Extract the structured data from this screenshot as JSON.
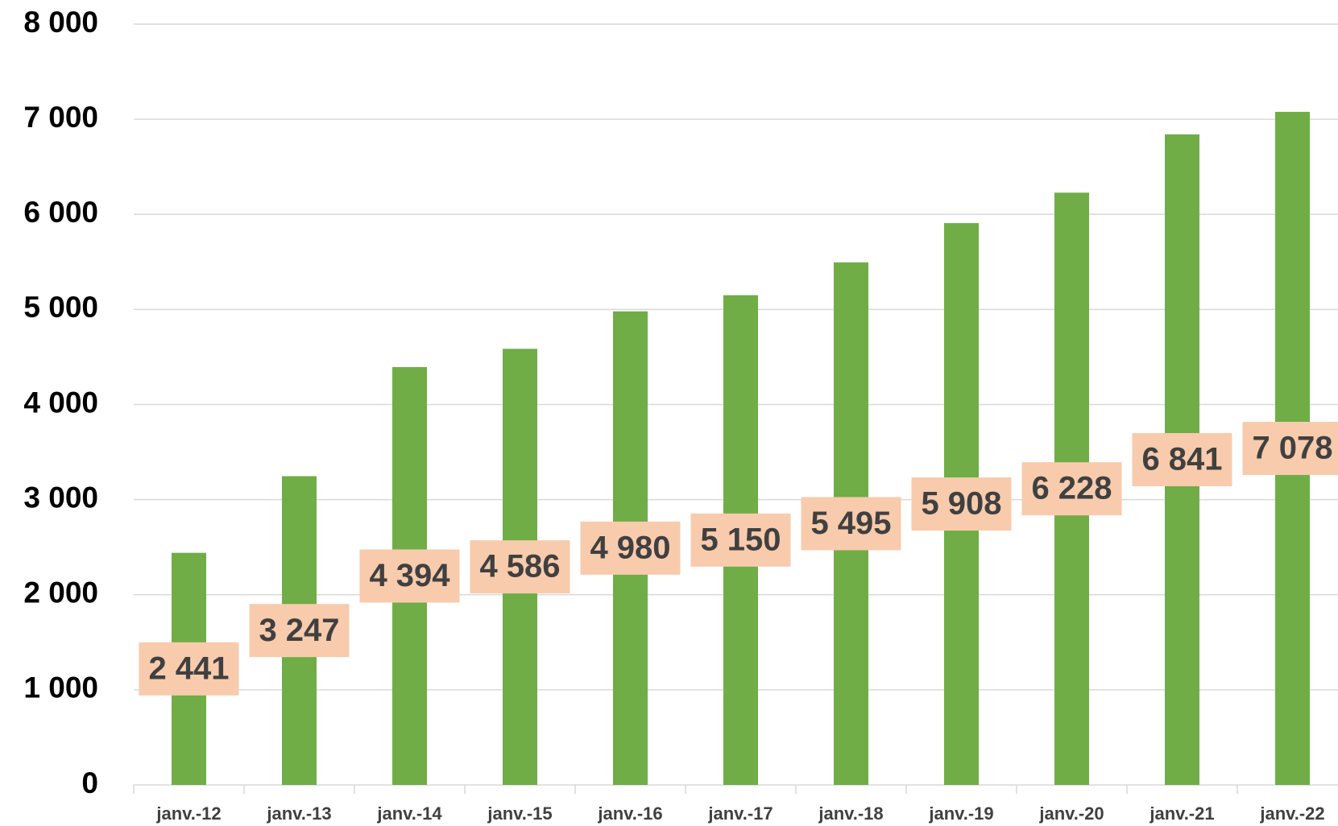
{
  "chart_data": {
    "type": "bar",
    "categories": [
      "janv.-12",
      "janv.-13",
      "janv.-14",
      "janv.-15",
      "janv.-16",
      "janv.-17",
      "janv.-18",
      "janv.-19",
      "janv.-20",
      "janv.-21",
      "janv.-22"
    ],
    "values": [
      2441,
      3247,
      4394,
      4586,
      4980,
      5150,
      5495,
      5908,
      6228,
      6841,
      7078
    ],
    "value_labels": [
      "2 441",
      "3 247",
      "4 394",
      "4 586",
      "4 980",
      "5 150",
      "5 495",
      "5 908",
      "6 228",
      "6 841",
      "7 078"
    ],
    "color": "#70ad47",
    "label_color": "#f8cbad",
    "ylim": [
      0,
      8000
    ],
    "yticks": [
      {
        "value": 0,
        "label": "0"
      },
      {
        "value": 1000,
        "label": "1 000"
      },
      {
        "value": 2000,
        "label": "2 000"
      },
      {
        "value": 3000,
        "label": "3 000"
      },
      {
        "value": 4000,
        "label": "4 000"
      },
      {
        "value": 5000,
        "label": "5 000"
      },
      {
        "value": 6000,
        "label": "6 000"
      },
      {
        "value": 7000,
        "label": "7 000"
      },
      {
        "value": 8000,
        "label": "8 000"
      }
    ],
    "grid": true
  }
}
